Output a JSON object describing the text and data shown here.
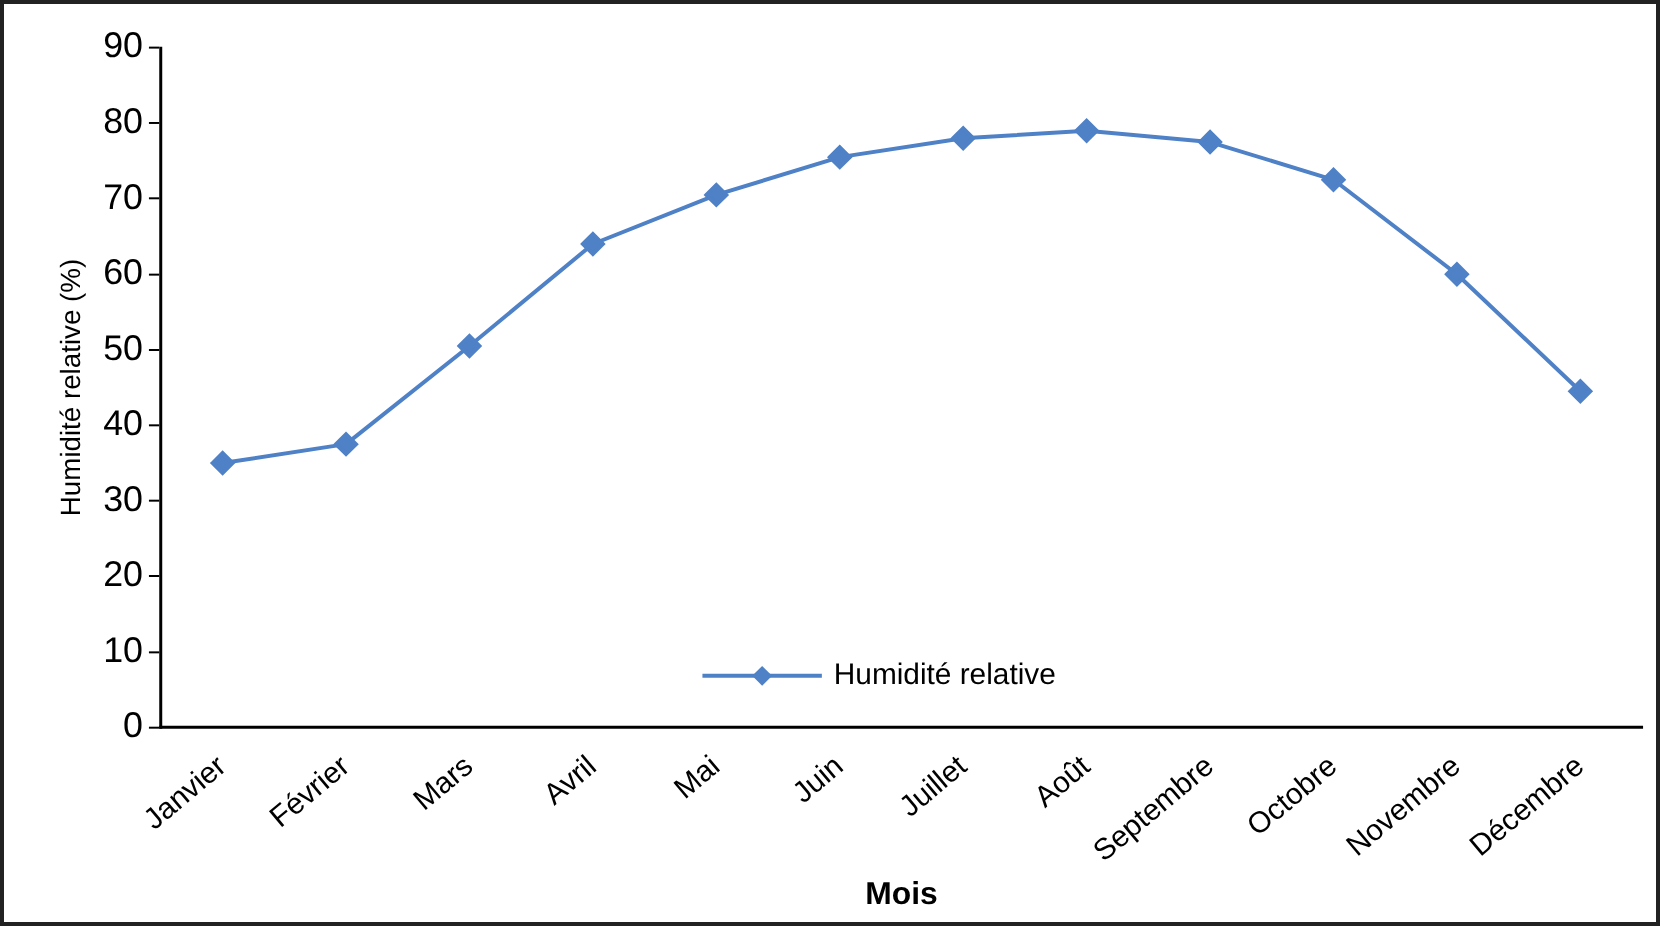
{
  "chart_data": {
    "type": "line",
    "xlabel": "Mois",
    "ylabel": "Humidité relative (%)",
    "categories": [
      "Janvier",
      "Février",
      "Mars",
      "Avril",
      "Mai",
      "Juin",
      "Juillet",
      "Août",
      "Septembre",
      "Octobre",
      "Novembre",
      "Décembre"
    ],
    "series": [
      {
        "name": "Humidité relative",
        "color": "#4f81c7",
        "values": [
          35,
          37.5,
          50.5,
          64,
          70.5,
          75.5,
          78,
          79,
          77.5,
          72.5,
          60,
          44.5
        ]
      }
    ],
    "ylim": [
      0,
      90
    ],
    "yticks": [
      0,
      10,
      20,
      30,
      40,
      50,
      60,
      70,
      80,
      90
    ],
    "grid": false,
    "legend": "bottom",
    "marker": "diamond",
    "line_style": "solid"
  }
}
